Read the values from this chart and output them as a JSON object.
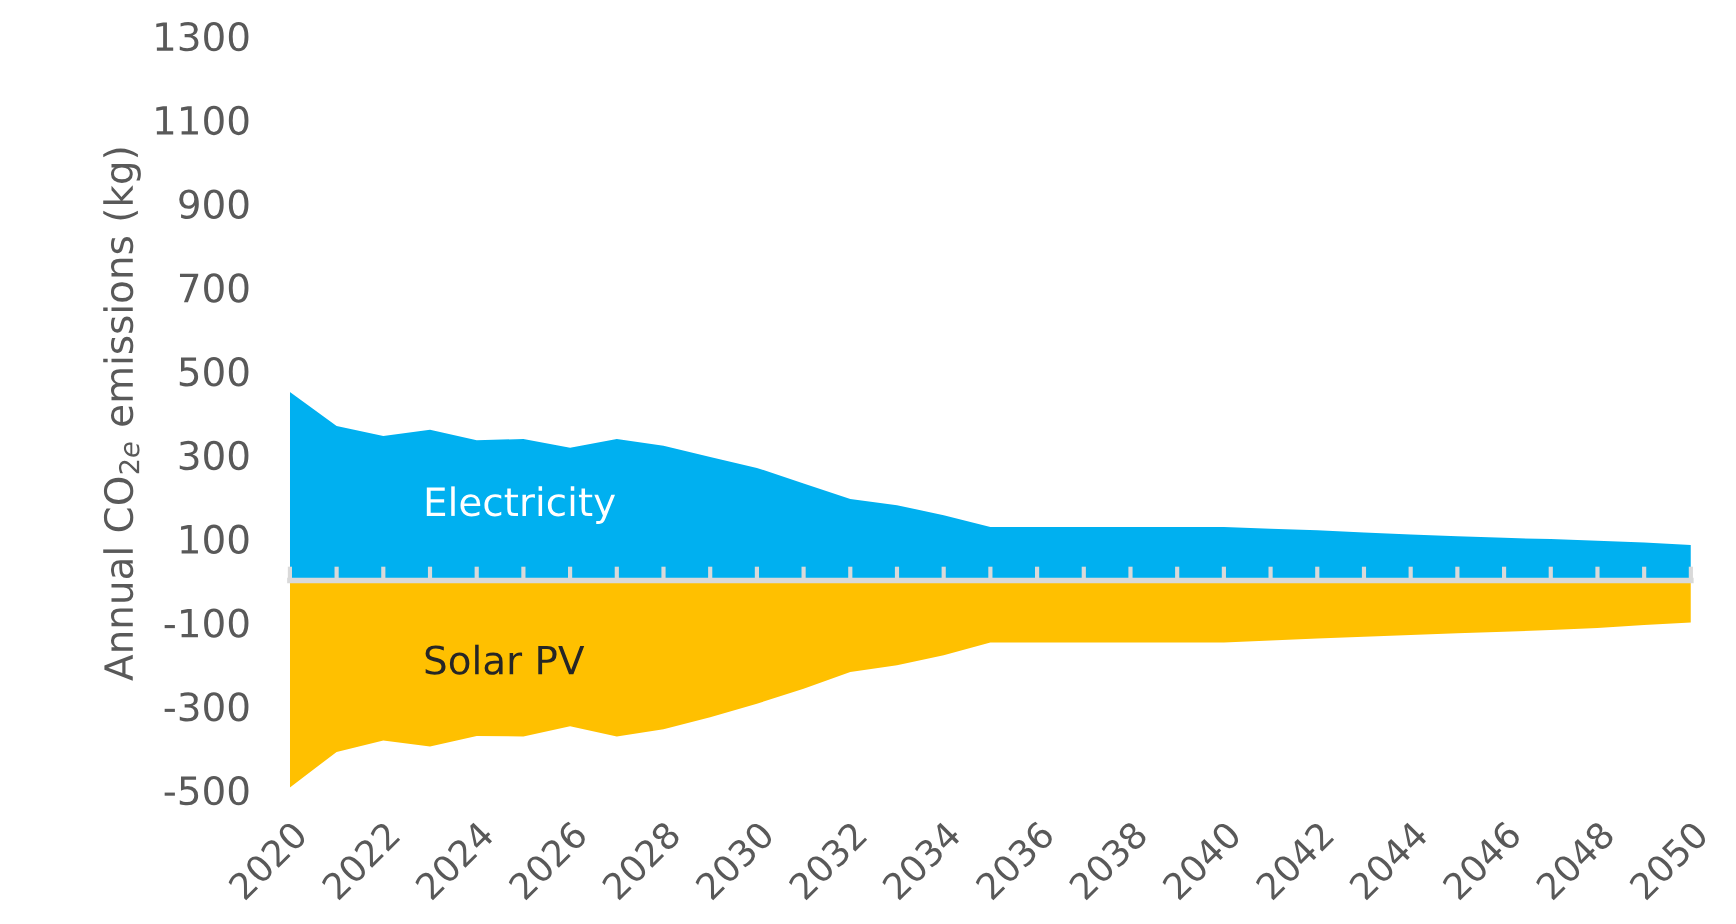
{
  "chart_data": {
    "type": "area",
    "ylabel": "Annual CO$_{2e}$ emissions (kg)",
    "x": [
      2020,
      2021,
      2022,
      2023,
      2024,
      2025,
      2026,
      2027,
      2028,
      2029,
      2030,
      2031,
      2032,
      2033,
      2034,
      2035,
      2036,
      2037,
      2038,
      2039,
      2040,
      2041,
      2042,
      2043,
      2044,
      2045,
      2046,
      2047,
      2048,
      2049,
      2050
    ],
    "series": [
      {
        "name": "Electricity",
        "color": "#00b0f0",
        "values": [
          450,
          369,
          345,
          360,
          335,
          338,
          317,
          338,
          322,
          295,
          269,
          232,
          195,
          180,
          156,
          128,
          128,
          128,
          128,
          128,
          128,
          124,
          120,
          115,
          110,
          106,
          102,
          99,
          95,
          91,
          85
        ]
      },
      {
        "name": "Solar PV",
        "color": "#ffc000",
        "values": [
          -494,
          -409,
          -382,
          -396,
          -371,
          -372,
          -348,
          -372,
          -355,
          -326,
          -294,
          -258,
          -218,
          -202,
          -178,
          -148,
          -148,
          -148,
          -148,
          -148,
          -148,
          -143,
          -138,
          -134,
          -130,
          -126,
          -122,
          -118,
          -113,
          -106,
          -100
        ]
      }
    ],
    "xlim": [
      2020,
      2050
    ],
    "xticks": [
      2020,
      2022,
      2024,
      2026,
      2028,
      2030,
      2032,
      2034,
      2036,
      2038,
      2040,
      2042,
      2044,
      2046,
      2048,
      2050
    ],
    "ylim": [
      -500,
      1300
    ],
    "yticks": [
      -500,
      -300,
      -100,
      100,
      300,
      500,
      700,
      900,
      1100,
      1300
    ],
    "grid": false,
    "legend": false
  }
}
